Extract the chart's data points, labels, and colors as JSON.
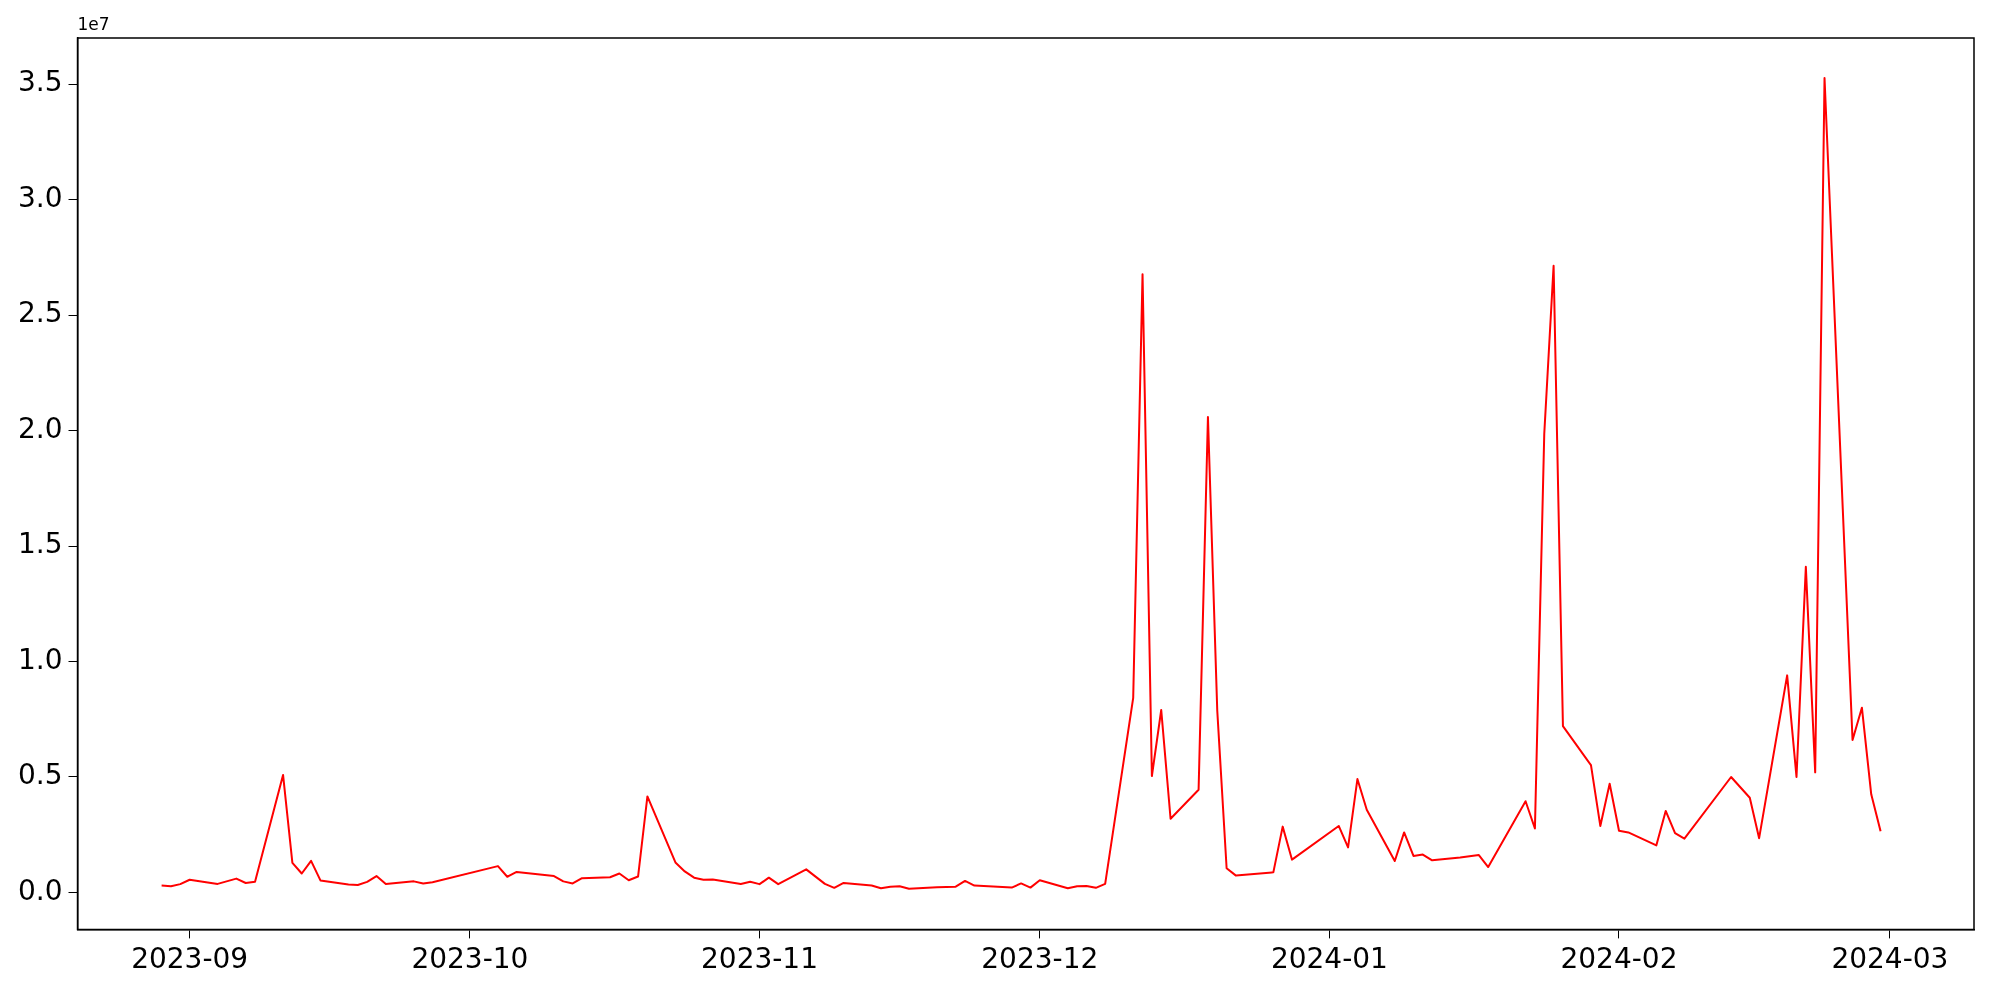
{
  "chart_data": {
    "type": "line",
    "annotations": [
      "1e7"
    ],
    "x": [
      "2023-08-29",
      "2023-08-30",
      "2023-08-31",
      "2023-09-01",
      "2023-09-04",
      "2023-09-06",
      "2023-09-07",
      "2023-09-08",
      "2023-09-11",
      "2023-09-12",
      "2023-09-13",
      "2023-09-14",
      "2023-09-15",
      "2023-09-18",
      "2023-09-19",
      "2023-09-20",
      "2023-09-21",
      "2023-09-22",
      "2023-09-25",
      "2023-09-26",
      "2023-09-27",
      "2023-10-04",
      "2023-10-05",
      "2023-10-06",
      "2023-10-10",
      "2023-10-11",
      "2023-10-12",
      "2023-10-13",
      "2023-10-16",
      "2023-10-17",
      "2023-10-18",
      "2023-10-19",
      "2023-10-20",
      "2023-10-23",
      "2023-10-24",
      "2023-10-25",
      "2023-10-26",
      "2023-10-27",
      "2023-10-30",
      "2023-10-31",
      "2023-11-01",
      "2023-11-02",
      "2023-11-03",
      "2023-11-06",
      "2023-11-08",
      "2023-11-09",
      "2023-11-10",
      "2023-11-13",
      "2023-11-14",
      "2023-11-15",
      "2023-11-16",
      "2023-11-17",
      "2023-11-20",
      "2023-11-22",
      "2023-11-23",
      "2023-11-24",
      "2023-11-28",
      "2023-11-29",
      "2023-11-30",
      "2023-12-01",
      "2023-12-04",
      "2023-12-05",
      "2023-12-06",
      "2023-12-07",
      "2023-12-08",
      "2023-12-11",
      "2023-12-12",
      "2023-12-13",
      "2023-12-14",
      "2023-12-15",
      "2023-12-18",
      "2023-12-19",
      "2023-12-20",
      "2023-12-21",
      "2023-12-22",
      "2023-12-26",
      "2023-12-27",
      "2023-12-28",
      "2024-01-02",
      "2024-01-03",
      "2024-01-04",
      "2024-01-05",
      "2024-01-08",
      "2024-01-09",
      "2024-01-10",
      "2024-01-11",
      "2024-01-12",
      "2024-01-15",
      "2024-01-17",
      "2024-01-18",
      "2024-01-22",
      "2024-01-23",
      "2024-01-24",
      "2024-01-25",
      "2024-01-26",
      "2024-01-29",
      "2024-01-30",
      "2024-01-31",
      "2024-02-01",
      "2024-02-02",
      "2024-02-05",
      "2024-02-06",
      "2024-02-07",
      "2024-02-08",
      "2024-02-13",
      "2024-02-15",
      "2024-02-16",
      "2024-02-19",
      "2024-02-20",
      "2024-02-21",
      "2024-02-22",
      "2024-02-23",
      "2024-02-26",
      "2024-02-27",
      "2024-02-28",
      "2024-02-29"
    ],
    "series": [
      {
        "color": "#ff0000",
        "values": [
          0.03,
          0.027,
          0.036,
          0.055,
          0.037,
          0.06,
          0.041,
          0.046,
          0.509,
          0.128,
          0.082,
          0.137,
          0.052,
          0.034,
          0.032,
          0.046,
          0.071,
          0.037,
          0.048,
          0.039,
          0.044,
          0.114,
          0.068,
          0.089,
          0.071,
          0.048,
          0.039,
          0.062,
          0.066,
          0.082,
          0.053,
          0.069,
          0.416,
          0.13,
          0.091,
          0.064,
          0.055,
          0.056,
          0.037,
          0.046,
          0.036,
          0.064,
          0.036,
          0.1,
          0.037,
          0.02,
          0.041,
          0.03,
          0.018,
          0.025,
          0.027,
          0.016,
          0.023,
          0.025,
          0.05,
          0.03,
          0.021,
          0.039,
          0.021,
          0.053,
          0.018,
          0.027,
          0.028,
          0.02,
          0.037,
          0.843,
          2.677,
          0.504,
          0.79,
          0.319,
          0.445,
          2.059,
          0.786,
          0.105,
          0.073,
          0.087,
          0.285,
          0.142,
          0.288,
          0.195,
          0.491,
          0.358,
          0.136,
          0.26,
          0.158,
          0.164,
          0.139,
          0.151,
          0.162,
          0.11,
          0.395,
          0.277,
          1.986,
          2.714,
          0.72,
          0.551,
          0.288,
          0.471,
          0.267,
          0.26,
          0.204,
          0.353,
          0.257,
          0.233,
          0.5,
          0.41,
          0.235,
          0.94,
          0.5,
          1.41,
          0.52,
          3.527,
          0.66,
          0.8,
          0.425,
          0.265
        ]
      }
    ],
    "xlim": [
      "2023-08-20",
      "2024-03-10"
    ],
    "xticks": [
      {
        "value": "2023-09-01",
        "label": "2023-09"
      },
      {
        "value": "2023-10-01",
        "label": "2023-10"
      },
      {
        "value": "2023-11-01",
        "label": "2023-11"
      },
      {
        "value": "2023-12-01",
        "label": "2023-12"
      },
      {
        "value": "2024-01-01",
        "label": "2024-01"
      },
      {
        "value": "2024-02-01",
        "label": "2024-02"
      },
      {
        "value": "2024-03-01",
        "label": "2024-03"
      }
    ],
    "ylim": [
      -0.16,
      3.7
    ],
    "yticks": [
      {
        "value": 0,
        "label": "0.0"
      },
      0.5,
      {
        "value": 1,
        "label": "1.0"
      },
      1.5,
      {
        "value": 2,
        "label": "2.0"
      },
      2.5,
      {
        "value": 3,
        "label": "3.0"
      },
      3.5
    ],
    "grid": false,
    "legend": false,
    "line_style": "solid"
  }
}
